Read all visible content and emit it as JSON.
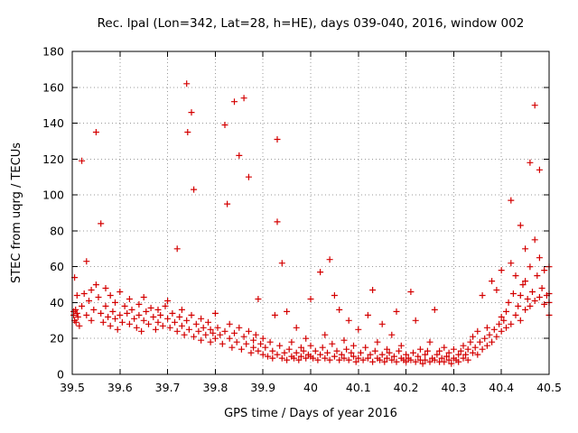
{
  "chart_data": {
    "type": "scatter",
    "title": "Rec. lpal (Lon=342, Lat=28, h=HE), days 039-040, 2016, window 002",
    "xlabel": "GPS time / Days of year 2016",
    "ylabel": "STEC from uqrg / TECUs",
    "xlim": [
      39.5,
      40.5
    ],
    "ylim": [
      0,
      180
    ],
    "xticks": [
      39.5,
      39.6,
      39.7,
      39.8,
      39.9,
      40.0,
      40.1,
      40.2,
      40.3,
      40.4,
      40.5
    ],
    "xtick_labels": [
      "39.5",
      "39.6",
      "39.7",
      "39.8",
      "39.9",
      "40",
      "40.1",
      "40.2",
      "40.3",
      "40.4",
      "40.5"
    ],
    "yticks": [
      0,
      20,
      40,
      60,
      80,
      100,
      120,
      140,
      160,
      180
    ],
    "ytick_labels": [
      "0",
      "20",
      "40",
      "60",
      "80",
      "100",
      "120",
      "140",
      "160",
      "180"
    ],
    "grid": true,
    "legend": "none",
    "marker": "plus",
    "marker_color": "#d40000",
    "grid_color": "#9a9a9a",
    "points": [
      [
        39.503,
        33
      ],
      [
        39.503,
        35
      ],
      [
        39.505,
        54
      ],
      [
        39.505,
        30
      ],
      [
        39.507,
        36
      ],
      [
        39.508,
        29
      ],
      [
        39.51,
        34
      ],
      [
        39.51,
        44
      ],
      [
        39.512,
        32
      ],
      [
        39.515,
        27
      ],
      [
        39.52,
        119
      ],
      [
        39.52,
        38
      ],
      [
        39.525,
        45
      ],
      [
        39.53,
        63
      ],
      [
        39.53,
        33
      ],
      [
        39.535,
        41
      ],
      [
        39.54,
        47
      ],
      [
        39.54,
        30
      ],
      [
        39.545,
        36
      ],
      [
        39.55,
        135
      ],
      [
        39.55,
        50
      ],
      [
        39.555,
        43
      ],
      [
        39.56,
        84
      ],
      [
        39.56,
        34
      ],
      [
        39.565,
        29
      ],
      [
        39.57,
        48
      ],
      [
        39.57,
        38
      ],
      [
        39.575,
        32
      ],
      [
        39.58,
        44
      ],
      [
        39.58,
        27
      ],
      [
        39.585,
        35
      ],
      [
        39.59,
        40
      ],
      [
        39.59,
        31
      ],
      [
        39.595,
        25
      ],
      [
        39.6,
        46
      ],
      [
        39.6,
        33
      ],
      [
        39.605,
        29
      ],
      [
        39.61,
        38
      ],
      [
        39.615,
        34
      ],
      [
        39.62,
        42
      ],
      [
        39.62,
        28
      ],
      [
        39.625,
        36
      ],
      [
        39.63,
        31
      ],
      [
        39.635,
        26
      ],
      [
        39.64,
        39
      ],
      [
        39.64,
        33
      ],
      [
        39.645,
        24
      ],
      [
        39.65,
        43
      ],
      [
        39.65,
        30
      ],
      [
        39.655,
        35
      ],
      [
        39.66,
        28
      ],
      [
        39.665,
        37
      ],
      [
        39.67,
        32
      ],
      [
        39.675,
        25
      ],
      [
        39.68,
        36
      ],
      [
        39.68,
        29
      ],
      [
        39.685,
        33
      ],
      [
        39.69,
        27
      ],
      [
        39.695,
        38
      ],
      [
        39.7,
        41
      ],
      [
        39.7,
        31
      ],
      [
        39.705,
        26
      ],
      [
        39.71,
        34
      ],
      [
        39.715,
        29
      ],
      [
        39.72,
        70
      ],
      [
        39.72,
        24
      ],
      [
        39.725,
        32
      ],
      [
        39.73,
        36
      ],
      [
        39.73,
        27
      ],
      [
        39.735,
        22
      ],
      [
        39.74,
        162
      ],
      [
        39.74,
        30
      ],
      [
        39.742,
        135
      ],
      [
        39.745,
        25
      ],
      [
        39.75,
        146
      ],
      [
        39.75,
        33
      ],
      [
        39.755,
        103
      ],
      [
        39.755,
        21
      ],
      [
        39.76,
        28
      ],
      [
        39.765,
        24
      ],
      [
        39.77,
        31
      ],
      [
        39.77,
        19
      ],
      [
        39.775,
        26
      ],
      [
        39.78,
        22
      ],
      [
        39.785,
        29
      ],
      [
        39.79,
        25
      ],
      [
        39.79,
        18
      ],
      [
        39.795,
        23
      ],
      [
        39.8,
        34
      ],
      [
        39.8,
        20
      ],
      [
        39.805,
        26
      ],
      [
        39.81,
        22
      ],
      [
        39.815,
        17
      ],
      [
        39.82,
        139
      ],
      [
        39.82,
        24
      ],
      [
        39.825,
        95
      ],
      [
        39.83,
        20
      ],
      [
        39.83,
        28
      ],
      [
        39.835,
        15
      ],
      [
        39.84,
        152
      ],
      [
        39.84,
        23
      ],
      [
        39.845,
        18
      ],
      [
        39.85,
        122
      ],
      [
        39.85,
        26
      ],
      [
        39.855,
        14
      ],
      [
        39.86,
        154
      ],
      [
        39.86,
        21
      ],
      [
        39.865,
        17
      ],
      [
        39.87,
        110
      ],
      [
        39.87,
        24
      ],
      [
        39.875,
        12
      ],
      [
        39.88,
        19
      ],
      [
        39.88,
        15
      ],
      [
        39.885,
        22
      ],
      [
        39.89,
        42
      ],
      [
        39.89,
        13
      ],
      [
        39.895,
        17
      ],
      [
        39.9,
        11
      ],
      [
        39.9,
        20
      ],
      [
        39.905,
        15
      ],
      [
        39.91,
        10
      ],
      [
        39.915,
        18
      ],
      [
        39.92,
        13
      ],
      [
        39.92,
        9
      ],
      [
        39.925,
        33
      ],
      [
        39.93,
        131
      ],
      [
        39.93,
        85
      ],
      [
        39.93,
        11
      ],
      [
        39.935,
        16
      ],
      [
        39.94,
        62
      ],
      [
        39.94,
        9
      ],
      [
        39.945,
        12
      ],
      [
        39.95,
        35
      ],
      [
        39.95,
        8
      ],
      [
        39.955,
        14
      ],
      [
        39.96,
        10
      ],
      [
        39.96,
        18
      ],
      [
        39.965,
        9
      ],
      [
        39.97,
        26
      ],
      [
        39.97,
        12
      ],
      [
        39.975,
        8
      ],
      [
        39.98,
        15
      ],
      [
        39.98,
        10
      ],
      [
        39.985,
        13
      ],
      [
        39.99,
        9
      ],
      [
        39.99,
        20
      ],
      [
        39.995,
        11
      ],
      [
        40.0,
        42
      ],
      [
        40.0,
        10
      ],
      [
        40.0,
        16
      ],
      [
        40.005,
        9
      ],
      [
        40.01,
        13
      ],
      [
        40.015,
        8
      ],
      [
        40.02,
        57
      ],
      [
        40.02,
        11
      ],
      [
        40.025,
        15
      ],
      [
        40.03,
        9
      ],
      [
        40.03,
        22
      ],
      [
        40.035,
        12
      ],
      [
        40.04,
        64
      ],
      [
        40.04,
        8
      ],
      [
        40.045,
        17
      ],
      [
        40.05,
        44
      ],
      [
        40.05,
        10
      ],
      [
        40.055,
        13
      ],
      [
        40.06,
        36
      ],
      [
        40.06,
        8
      ],
      [
        40.065,
        11
      ],
      [
        40.07,
        9
      ],
      [
        40.07,
        19
      ],
      [
        40.075,
        14
      ],
      [
        40.08,
        30
      ],
      [
        40.08,
        8
      ],
      [
        40.085,
        12
      ],
      [
        40.09,
        10
      ],
      [
        40.09,
        16
      ],
      [
        40.095,
        7
      ],
      [
        40.1,
        25
      ],
      [
        40.1,
        9
      ],
      [
        40.105,
        12
      ],
      [
        40.11,
        8
      ],
      [
        40.115,
        15
      ],
      [
        40.12,
        33
      ],
      [
        40.12,
        9
      ],
      [
        40.125,
        11
      ],
      [
        40.13,
        47
      ],
      [
        40.13,
        7
      ],
      [
        40.135,
        13
      ],
      [
        40.14,
        9
      ],
      [
        40.14,
        18
      ],
      [
        40.145,
        8
      ],
      [
        40.15,
        28
      ],
      [
        40.15,
        11
      ],
      [
        40.155,
        7
      ],
      [
        40.16,
        14
      ],
      [
        40.16,
        9
      ],
      [
        40.165,
        12
      ],
      [
        40.17,
        22
      ],
      [
        40.17,
        8
      ],
      [
        40.175,
        10
      ],
      [
        40.18,
        35
      ],
      [
        40.18,
        7
      ],
      [
        40.185,
        13
      ],
      [
        40.19,
        9
      ],
      [
        40.19,
        16
      ],
      [
        40.195,
        8
      ],
      [
        40.2,
        11
      ],
      [
        40.2,
        7
      ],
      [
        40.205,
        9
      ],
      [
        40.21,
        46
      ],
      [
        40.21,
        8
      ],
      [
        40.215,
        12
      ],
      [
        40.22,
        30
      ],
      [
        40.22,
        7
      ],
      [
        40.225,
        10
      ],
      [
        40.23,
        8
      ],
      [
        40.23,
        14
      ],
      [
        40.235,
        6
      ],
      [
        40.24,
        11
      ],
      [
        40.24,
        8
      ],
      [
        40.245,
        13
      ],
      [
        40.25,
        18
      ],
      [
        40.25,
        7
      ],
      [
        40.255,
        9
      ],
      [
        40.26,
        36
      ],
      [
        40.26,
        8
      ],
      [
        40.265,
        11
      ],
      [
        40.27,
        7
      ],
      [
        40.27,
        13
      ],
      [
        40.275,
        9
      ],
      [
        40.28,
        15
      ],
      [
        40.28,
        7
      ],
      [
        40.285,
        10
      ],
      [
        40.29,
        8
      ],
      [
        40.29,
        12
      ],
      [
        40.295,
        6
      ],
      [
        40.3,
        9
      ],
      [
        40.3,
        14
      ],
      [
        40.305,
        8
      ],
      [
        40.31,
        11
      ],
      [
        40.31,
        7
      ],
      [
        40.315,
        13
      ],
      [
        40.32,
        9
      ],
      [
        40.32,
        16
      ],
      [
        40.325,
        11
      ],
      [
        40.33,
        14
      ],
      [
        40.33,
        8
      ],
      [
        40.335,
        18
      ],
      [
        40.34,
        12
      ],
      [
        40.34,
        21
      ],
      [
        40.345,
        15
      ],
      [
        40.35,
        24
      ],
      [
        40.35,
        11
      ],
      [
        40.355,
        18
      ],
      [
        40.36,
        44
      ],
      [
        40.36,
        14
      ],
      [
        40.365,
        20
      ],
      [
        40.37,
        26
      ],
      [
        40.37,
        16
      ],
      [
        40.375,
        22
      ],
      [
        40.38,
        52
      ],
      [
        40.38,
        18
      ],
      [
        40.385,
        25
      ],
      [
        40.39,
        47
      ],
      [
        40.39,
        21
      ],
      [
        40.395,
        28
      ],
      [
        40.4,
        58
      ],
      [
        40.4,
        24
      ],
      [
        40.4,
        32
      ],
      [
        40.405,
        30
      ],
      [
        40.41,
        35
      ],
      [
        40.41,
        26
      ],
      [
        40.415,
        40
      ],
      [
        40.42,
        97
      ],
      [
        40.42,
        62
      ],
      [
        40.42,
        28
      ],
      [
        40.425,
        45
      ],
      [
        40.43,
        55
      ],
      [
        40.43,
        33
      ],
      [
        40.435,
        38
      ],
      [
        40.44,
        83
      ],
      [
        40.44,
        44
      ],
      [
        40.44,
        30
      ],
      [
        40.445,
        50
      ],
      [
        40.45,
        70
      ],
      [
        40.45,
        52
      ],
      [
        40.45,
        36
      ],
      [
        40.455,
        42
      ],
      [
        40.46,
        118
      ],
      [
        40.46,
        60
      ],
      [
        40.46,
        38
      ],
      [
        40.465,
        46
      ],
      [
        40.47,
        150
      ],
      [
        40.47,
        75
      ],
      [
        40.47,
        41
      ],
      [
        40.475,
        55
      ],
      [
        40.48,
        114
      ],
      [
        40.48,
        65
      ],
      [
        40.48,
        43
      ],
      [
        40.485,
        48
      ],
      [
        40.49,
        58
      ],
      [
        40.49,
        39
      ],
      [
        40.495,
        44
      ],
      [
        40.5,
        60
      ],
      [
        40.5,
        40
      ],
      [
        40.5,
        33
      ],
      [
        40.5,
        45
      ]
    ]
  }
}
